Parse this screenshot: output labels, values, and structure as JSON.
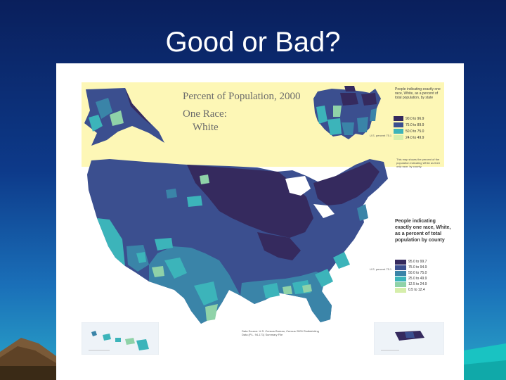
{
  "slide": {
    "title": "Good or Bad?"
  },
  "map": {
    "title_line1": "Percent of Population, 2000",
    "title_line2": "One Race:",
    "title_line3": "White",
    "inset_legend_title": "People indicating exactly one race, White, as a percent of total population, by state",
    "inset_legend": [
      "90.0 to 96.9",
      "75.0 to 89.9",
      "50.0 to 75.0",
      "24.0 to 49.9"
    ],
    "us_average_label": "U.S. percent 75.1",
    "main_legend_title": "People indicating exactly one race, White, as a percent of total population by county",
    "main_legend": [
      "95.0 to 99.7",
      "75.0 to 94.9",
      "50.0 to 75.0",
      "25.0 to 49.9",
      "12.5 to 24.9",
      "0.5 to 12.4"
    ],
    "note": "This map shows the percent of the population indicating White as their only race, by county.",
    "source": "Data Source: U.S. Census Bureau, Census 2000 Redistricting Data (P.L. 94-171) Summary File"
  },
  "colors": {
    "c1": "#352a5e",
    "c2": "#3b4f8f",
    "c3": "#3a84a8",
    "c4": "#3cb4ba",
    "c5": "#8fd2a8",
    "c6": "#d6eeab",
    "ocean": "#ffffff",
    "banner": "#fdf7b6"
  }
}
